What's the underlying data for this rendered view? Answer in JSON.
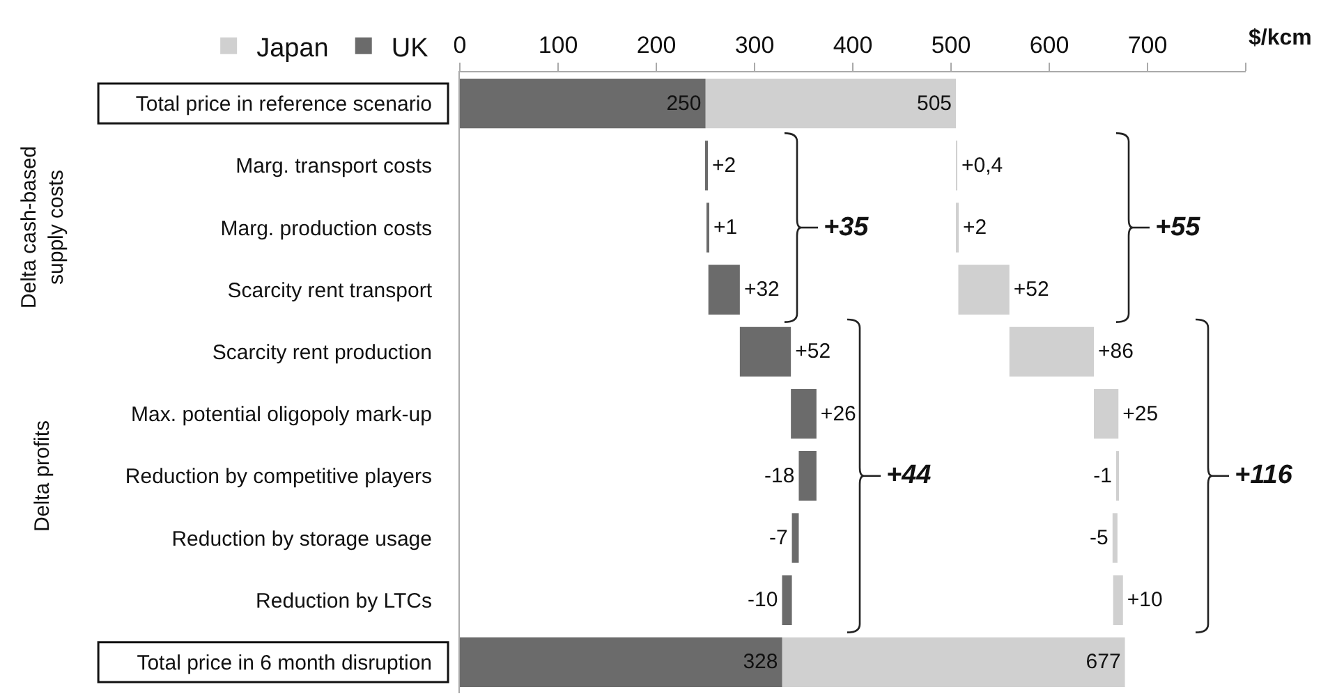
{
  "chart_data": {
    "type": "bar",
    "orientation": "horizontal",
    "xlabel": "$/kcm",
    "categories": [
      "Total price in reference scenario",
      "Marg. transport costs",
      "Marg. production costs",
      "Scarcity rent transport",
      "Scarcity rent production",
      "Max. potential oligopoly mark-up",
      "Reduction by competitive players",
      "Reduction by storage usage",
      "Reduction by LTCs",
      "Total price in 6 month disruption"
    ],
    "series": [
      {
        "name": "Japan",
        "color": "#d0d0d0",
        "values": [
          505,
          0.4,
          2,
          52,
          86,
          25,
          -1,
          -5,
          10,
          677
        ],
        "base": [
          0,
          505,
          505.4,
          507.4,
          559.4,
          645.4,
          670.4,
          669.4,
          665,
          0
        ],
        "value_labels": [
          "505",
          "+0,4",
          "+2",
          "+52",
          "+86",
          "+25",
          "-1",
          "-5",
          "+10",
          "677"
        ]
      },
      {
        "name": "UK",
        "color": "#6b6b6b",
        "values": [
          250,
          2,
          1,
          32,
          52,
          26,
          -18,
          -7,
          -10,
          328
        ],
        "base": [
          0,
          250,
          252,
          253,
          285,
          337,
          363,
          345,
          338,
          0
        ],
        "value_labels": [
          "250",
          "+2",
          "+1",
          "+32",
          "+52",
          "+26",
          "-18",
          "-7",
          "-10",
          "328"
        ]
      }
    ],
    "xlim": [
      0,
      800
    ],
    "xticks": [
      0,
      100,
      200,
      300,
      400,
      500,
      600,
      700,
      {
        "value": 800,
        "label": null
      }
    ],
    "legend": "top left",
    "annotations": [
      "Delta cash-based supply costs",
      "Delta profits",
      "+35",
      "+55",
      "+44",
      "+116"
    ]
  }
}
